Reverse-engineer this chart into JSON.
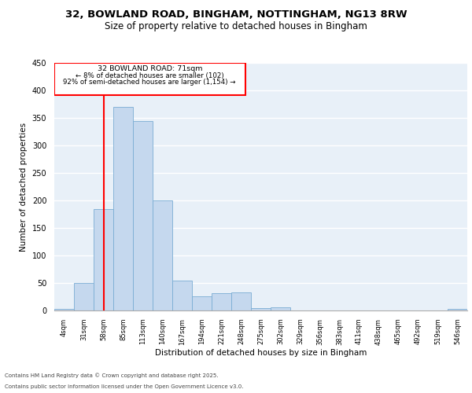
{
  "title_line1": "32, BOWLAND ROAD, BINGHAM, NOTTINGHAM, NG13 8RW",
  "title_line2": "Size of property relative to detached houses in Bingham",
  "xlabel": "Distribution of detached houses by size in Bingham",
  "ylabel": "Number of detached properties",
  "bar_labels": [
    "4sqm",
    "31sqm",
    "58sqm",
    "85sqm",
    "113sqm",
    "140sqm",
    "167sqm",
    "194sqm",
    "221sqm",
    "248sqm",
    "275sqm",
    "302sqm",
    "329sqm",
    "356sqm",
    "383sqm",
    "411sqm",
    "438sqm",
    "465sqm",
    "492sqm",
    "519sqm",
    "546sqm"
  ],
  "bar_values": [
    3,
    50,
    185,
    370,
    345,
    200,
    54,
    26,
    32,
    33,
    5,
    6,
    0,
    0,
    0,
    0,
    0,
    0,
    0,
    0,
    3
  ],
  "bar_color": "#c5d8ee",
  "bar_edgecolor": "#7aadd4",
  "background_color": "#e8f0f8",
  "grid_color": "#ffffff",
  "red_line_x": 2.0,
  "annotation_label": "32 BOWLAND ROAD: 71sqm",
  "annotation_smaller": "← 8% of detached houses are smaller (102)",
  "annotation_larger": "92% of semi-detached houses are larger (1,154) →",
  "ylim": [
    0,
    450
  ],
  "yticks": [
    0,
    50,
    100,
    150,
    200,
    250,
    300,
    350,
    400,
    450
  ],
  "footnote1": "Contains HM Land Registry data © Crown copyright and database right 2025.",
  "footnote2": "Contains public sector information licensed under the Open Government Licence v3.0."
}
